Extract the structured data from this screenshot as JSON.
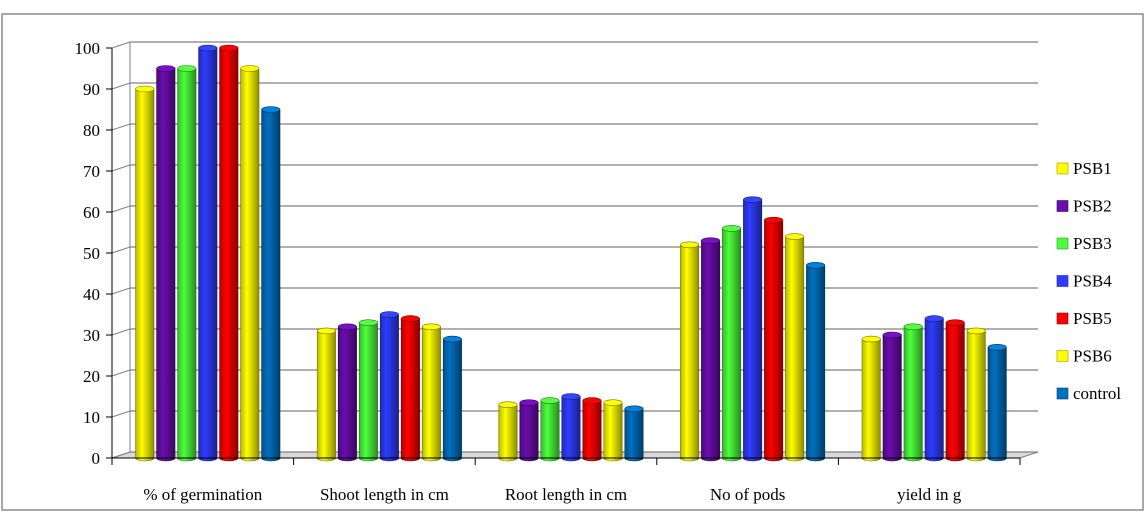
{
  "chart_data": {
    "type": "bar",
    "categories": [
      "% of germination",
      "Shoot length in cm",
      "Root length in cm",
      "No of pods",
      "yield in g"
    ],
    "series": [
      {
        "name": "PSB1",
        "color": "#ffff00",
        "values": [
          90,
          31,
          13,
          52,
          29
        ]
      },
      {
        "name": "PSB2",
        "color": "#6a0dad",
        "values": [
          95,
          32,
          13.5,
          53,
          30
        ]
      },
      {
        "name": "PSB3",
        "color": "#4cff3c",
        "values": [
          95,
          33,
          14,
          56,
          32
        ]
      },
      {
        "name": "PSB4",
        "color": "#2f3cff",
        "values": [
          100,
          35,
          15,
          63,
          34
        ]
      },
      {
        "name": "PSB5",
        "color": "#ff0000",
        "values": [
          100,
          34,
          14,
          58,
          33
        ]
      },
      {
        "name": "PSB6",
        "color": "#ffff00",
        "values": [
          95,
          32,
          13.5,
          54,
          31
        ]
      },
      {
        "name": "control",
        "color": "#0070c0",
        "values": [
          85,
          29,
          12,
          47,
          27
        ]
      }
    ],
    "yticks": [
      "0",
      "10",
      "20",
      "30",
      "40",
      "50",
      "60",
      "70",
      "80",
      "90",
      "100"
    ],
    "ylim": [
      0,
      100
    ],
    "grid": true,
    "legend_position": "right",
    "title": "",
    "xlabel": "",
    "ylabel": ""
  }
}
